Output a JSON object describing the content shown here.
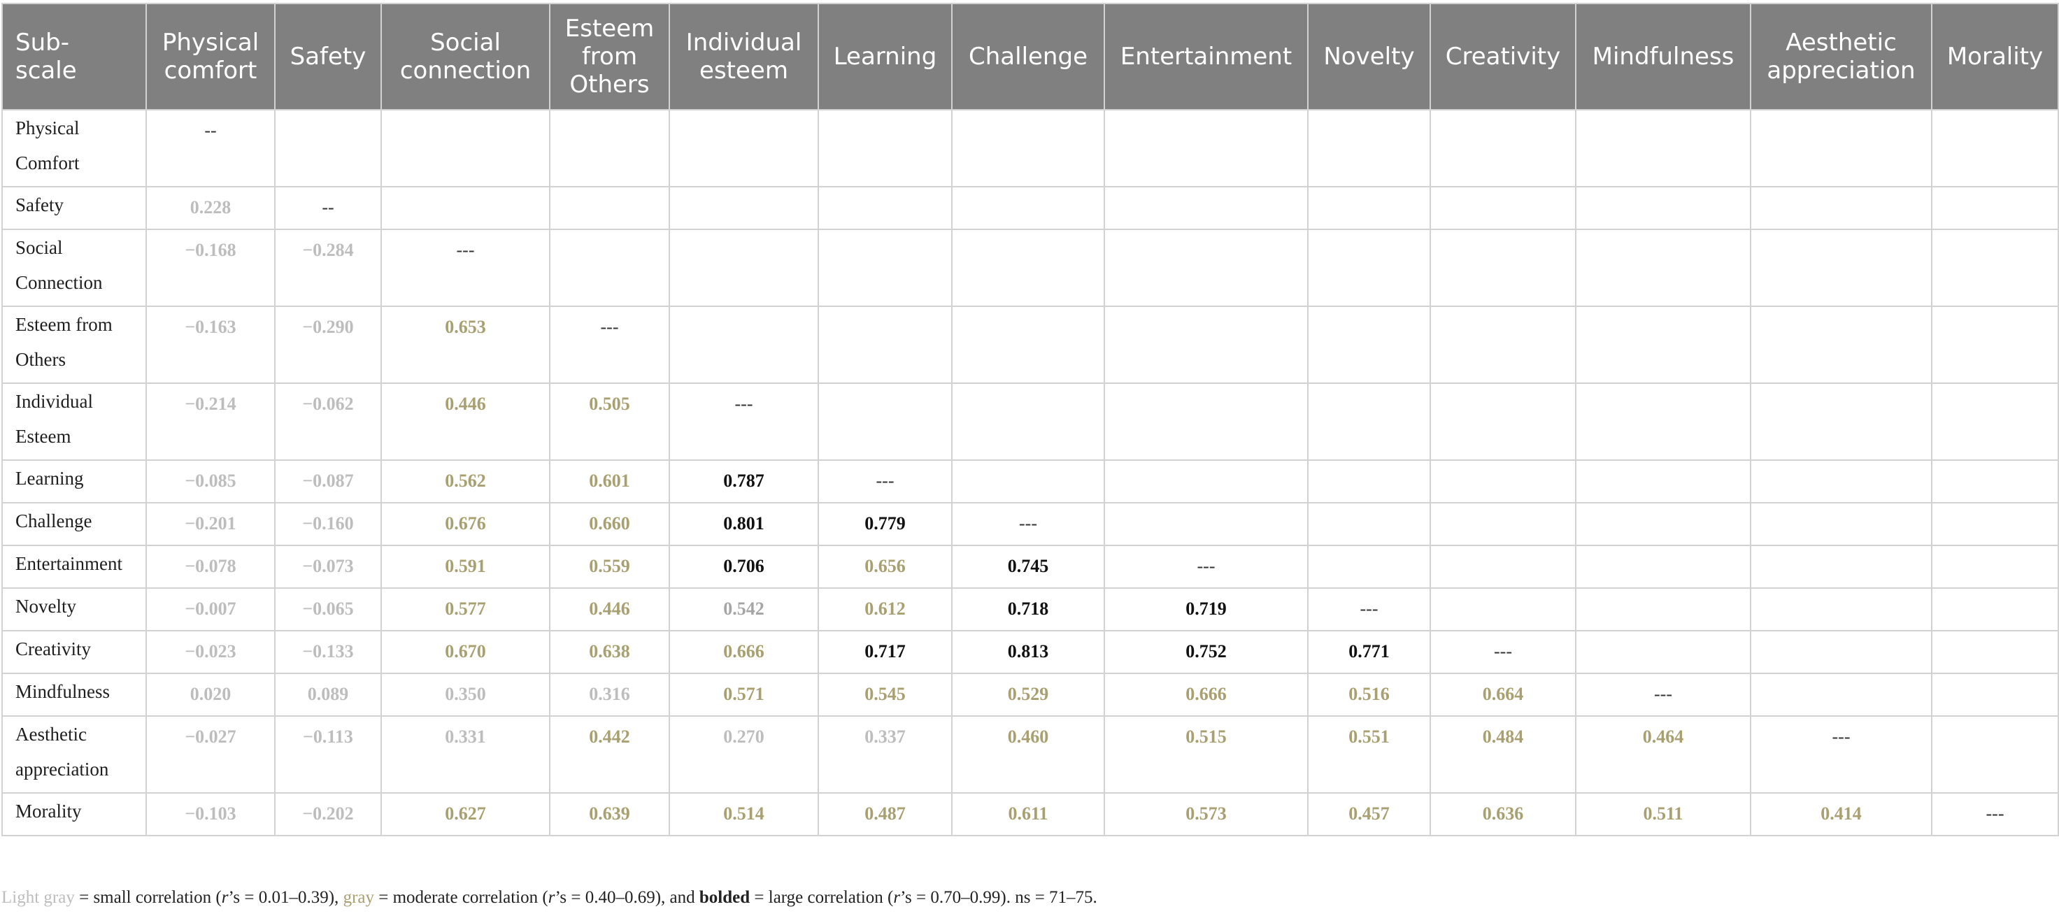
{
  "table": {
    "columns": [
      "Sub-scale",
      "Physical comfort",
      "Safety",
      "Social connection",
      "Esteem from Others",
      "Individual esteem",
      "Learning",
      "Challenge",
      "Entertainment",
      "Novelty",
      "Creativity",
      "Mindfulness",
      "Aesthetic appreciation",
      "Morality"
    ],
    "rows": [
      {
        "label": "Physical Comfort",
        "cells": [
          {
            "v": "--",
            "c": "dash"
          }
        ]
      },
      {
        "label": "Safety",
        "cells": [
          {
            "v": "0.228",
            "c": "light"
          },
          {
            "v": "--",
            "c": "dash"
          }
        ]
      },
      {
        "label": "Social Connection",
        "cells": [
          {
            "v": "−0.168",
            "c": "light"
          },
          {
            "v": "−0.284",
            "c": "light"
          },
          {
            "v": "---",
            "c": "dash"
          }
        ]
      },
      {
        "label": "Esteem from Others",
        "cells": [
          {
            "v": "−0.163",
            "c": "light"
          },
          {
            "v": "−0.290",
            "c": "light"
          },
          {
            "v": "0.653",
            "c": "mod"
          },
          {
            "v": "---",
            "c": "dash"
          }
        ]
      },
      {
        "label": "Individual Esteem",
        "cells": [
          {
            "v": "−0.214",
            "c": "light"
          },
          {
            "v": "−0.062",
            "c": "light"
          },
          {
            "v": "0.446",
            "c": "mod"
          },
          {
            "v": "0.505",
            "c": "mod"
          },
          {
            "v": "---",
            "c": "dash"
          }
        ]
      },
      {
        "label": "Learning",
        "cells": [
          {
            "v": "−0.085",
            "c": "light"
          },
          {
            "v": "−0.087",
            "c": "light"
          },
          {
            "v": "0.562",
            "c": "mod"
          },
          {
            "v": "0.601",
            "c": "mod"
          },
          {
            "v": "0.787",
            "c": "bold"
          },
          {
            "v": "---",
            "c": "dash"
          }
        ]
      },
      {
        "label": "Challenge",
        "cells": [
          {
            "v": "−0.201",
            "c": "light"
          },
          {
            "v": "−0.160",
            "c": "light"
          },
          {
            "v": "0.676",
            "c": "mod"
          },
          {
            "v": "0.660",
            "c": "mod"
          },
          {
            "v": "0.801",
            "c": "bold"
          },
          {
            "v": "0.779",
            "c": "bold"
          },
          {
            "v": "---",
            "c": "dash"
          }
        ]
      },
      {
        "label": "Entertainment",
        "cells": [
          {
            "v": "−0.078",
            "c": "light"
          },
          {
            "v": "−0.073",
            "c": "light"
          },
          {
            "v": "0.591",
            "c": "mod"
          },
          {
            "v": "0.559",
            "c": "mod"
          },
          {
            "v": "0.706",
            "c": "bold"
          },
          {
            "v": "0.656",
            "c": "mod"
          },
          {
            "v": "0.745",
            "c": "bold"
          },
          {
            "v": "---",
            "c": "dash"
          }
        ]
      },
      {
        "label": "Novelty",
        "cells": [
          {
            "v": "−0.007",
            "c": "light"
          },
          {
            "v": "−0.065",
            "c": "light"
          },
          {
            "v": "0.577",
            "c": "mod"
          },
          {
            "v": "0.446",
            "c": "mod"
          },
          {
            "v": "0.542",
            "c": "gray"
          },
          {
            "v": "0.612",
            "c": "mod"
          },
          {
            "v": "0.718",
            "c": "bold"
          },
          {
            "v": "0.719",
            "c": "bold"
          },
          {
            "v": "---",
            "c": "dash"
          }
        ]
      },
      {
        "label": "Creativity",
        "cells": [
          {
            "v": "−0.023",
            "c": "light"
          },
          {
            "v": "−0.133",
            "c": "light"
          },
          {
            "v": "0.670",
            "c": "mod"
          },
          {
            "v": "0.638",
            "c": "mod"
          },
          {
            "v": "0.666",
            "c": "mod"
          },
          {
            "v": "0.717",
            "c": "bold"
          },
          {
            "v": "0.813",
            "c": "bold"
          },
          {
            "v": "0.752",
            "c": "bold"
          },
          {
            "v": "0.771",
            "c": "bold"
          },
          {
            "v": "---",
            "c": "dash"
          }
        ]
      },
      {
        "label": "Mindfulness",
        "cells": [
          {
            "v": "0.020",
            "c": "light"
          },
          {
            "v": "0.089",
            "c": "light"
          },
          {
            "v": "0.350",
            "c": "light"
          },
          {
            "v": "0.316",
            "c": "light"
          },
          {
            "v": "0.571",
            "c": "mod"
          },
          {
            "v": "0.545",
            "c": "mod"
          },
          {
            "v": "0.529",
            "c": "mod"
          },
          {
            "v": "0.666",
            "c": "mod"
          },
          {
            "v": "0.516",
            "c": "mod"
          },
          {
            "v": "0.664",
            "c": "mod"
          },
          {
            "v": "---",
            "c": "dash"
          }
        ]
      },
      {
        "label": "Aesthetic appreciation",
        "cells": [
          {
            "v": "−0.027",
            "c": "light"
          },
          {
            "v": "−0.113",
            "c": "light"
          },
          {
            "v": "0.331",
            "c": "light"
          },
          {
            "v": "0.442",
            "c": "mod"
          },
          {
            "v": "0.270",
            "c": "light"
          },
          {
            "v": "0.337",
            "c": "light"
          },
          {
            "v": "0.460",
            "c": "mod"
          },
          {
            "v": "0.515",
            "c": "mod"
          },
          {
            "v": "0.551",
            "c": "mod"
          },
          {
            "v": "0.484",
            "c": "mod"
          },
          {
            "v": "0.464",
            "c": "mod"
          },
          {
            "v": "---",
            "c": "dash"
          }
        ]
      },
      {
        "label": "Morality",
        "cells": [
          {
            "v": "−0.103",
            "c": "light"
          },
          {
            "v": "−0.202",
            "c": "light"
          },
          {
            "v": "0.627",
            "c": "mod"
          },
          {
            "v": "0.639",
            "c": "mod"
          },
          {
            "v": "0.514",
            "c": "mod"
          },
          {
            "v": "0.487",
            "c": "mod"
          },
          {
            "v": "0.611",
            "c": "mod"
          },
          {
            "v": "0.573",
            "c": "mod"
          },
          {
            "v": "0.457",
            "c": "mod"
          },
          {
            "v": "0.636",
            "c": "mod"
          },
          {
            "v": "0.511",
            "c": "mod"
          },
          {
            "v": "0.414",
            "c": "mod"
          },
          {
            "v": "---",
            "c": "dash"
          }
        ]
      }
    ]
  },
  "footnote": {
    "light_gray": "Light gray",
    "part1": " = small correlation (",
    "r1": "r",
    "part2": "’s = 0.01–0.39), ",
    "gray": "gray",
    "part3": " = moderate correlation (",
    "r2": "r",
    "part4": "’s = 0.40–0.69), and ",
    "bolded": "bolded",
    "part5": " = large correlation (",
    "r3": "r",
    "part6": "’s = 0.70–0.99). ns = 71–75."
  },
  "colors": {
    "header_bg": "#808080",
    "light_gray": "#bdbdbd",
    "moderate": "#a8a070",
    "bold": "#111111"
  }
}
